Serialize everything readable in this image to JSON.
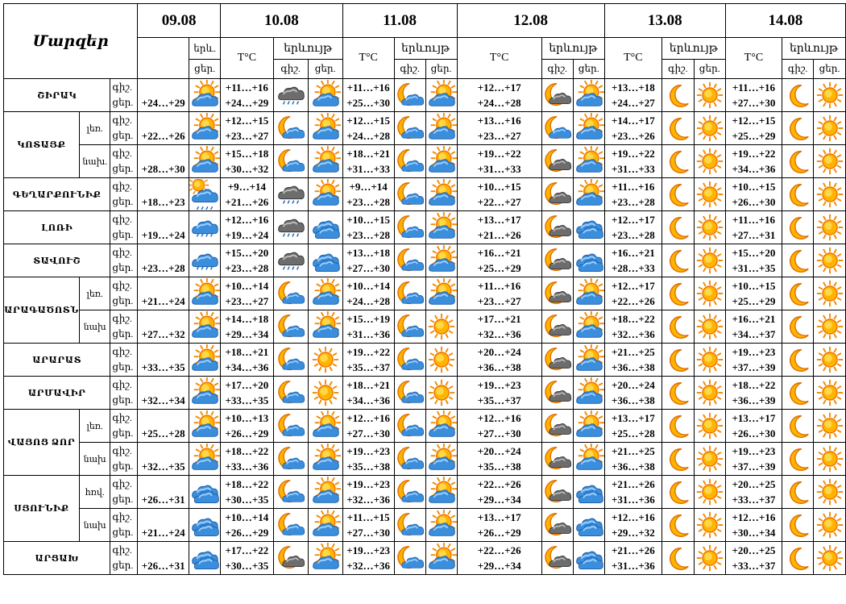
{
  "title": "Մարզեր",
  "dates": [
    "09.08",
    "10.08",
    "11.08",
    "12.08",
    "13.08",
    "14.08"
  ],
  "labels": {
    "temp": "T°C",
    "phen": "երևույթ",
    "phen_short": "երև.",
    "night": "գիշ.",
    "day": "ցեր."
  },
  "rows": [
    {
      "region": "ՇԻՐԱԿ",
      "t1": "+24…+29",
      "i1": "cloud-sun",
      "days": [
        {
          "n": "+11…+16",
          "d": "+24…+29",
          "in": "rain-cloud",
          "id": "cloud-sun"
        },
        {
          "n": "+11…+16",
          "d": "+25…+30",
          "in": "moon-cloud",
          "id": "cloud-sun"
        },
        {
          "n": "+12…+17",
          "d": "+24…+28",
          "in": "moon-dark-cloud",
          "id": "cloud-sun"
        },
        {
          "n": "+13…+18",
          "d": "+24…+27",
          "in": "moon",
          "id": "sun"
        },
        {
          "n": "+11…+16",
          "d": "+27…+30",
          "in": "moon",
          "id": "sun"
        }
      ]
    },
    {
      "region": "ԿՈՏԱՅՔ",
      "sub": "լեռ.",
      "t1": "+22…+26",
      "i1": "cloud-sun",
      "days": [
        {
          "n": "+12…+15",
          "d": "+23…+27",
          "in": "moon-cloud",
          "id": "cloud-sun"
        },
        {
          "n": "+12…+15",
          "d": "+24…+28",
          "in": "moon-cloud",
          "id": "cloud-sun"
        },
        {
          "n": "+13…+16",
          "d": "+23…+27",
          "in": "moon-cloud",
          "id": "cloud-sun"
        },
        {
          "n": "+14…+17",
          "d": "+23…+26",
          "in": "moon",
          "id": "sun"
        },
        {
          "n": "+12…+15",
          "d": "+25…+29",
          "in": "moon",
          "id": "sun"
        }
      ]
    },
    {
      "sub": "նախ.",
      "t1": "+28…+30",
      "i1": "cloud-sun",
      "days": [
        {
          "n": "+15…+18",
          "d": "+30…+32",
          "in": "moon-cloud",
          "id": "cloud-sun"
        },
        {
          "n": "+18…+21",
          "d": "+31…+33",
          "in": "moon-cloud",
          "id": "cloud-sun"
        },
        {
          "n": "+19…+22",
          "d": "+31…+33",
          "in": "moon-dark-cloud",
          "id": "cloud-sun"
        },
        {
          "n": "+19…+22",
          "d": "+31…+33",
          "in": "moon",
          "id": "sun"
        },
        {
          "n": "+19…+22",
          "d": "+34…+36",
          "in": "moon",
          "id": "sun"
        }
      ]
    },
    {
      "region": "ԳԵՂԱՐՔՈՒՆԻՔ",
      "t1": "+18…+23",
      "i1": "sun-rain",
      "days": [
        {
          "n": "+9…+14",
          "d": "+21…+26",
          "in": "rain-cloud",
          "id": "cloud-sun"
        },
        {
          "n": "+9…+14",
          "d": "+23…+28",
          "in": "moon-cloud",
          "id": "cloud-sun"
        },
        {
          "n": "+10…+15",
          "d": "+22…+27",
          "in": "moon-dark-cloud",
          "id": "cloud-sun"
        },
        {
          "n": "+11…+16",
          "d": "+23…+28",
          "in": "moon",
          "id": "sun"
        },
        {
          "n": "+10…+15",
          "d": "+26…+30",
          "in": "moon",
          "id": "sun"
        }
      ]
    },
    {
      "region": "ԼՈՌԻ",
      "t1": "+19…+24",
      "i1": "rain",
      "days": [
        {
          "n": "+12…+16",
          "d": "+19…+24",
          "in": "rain-cloud",
          "id": "cloud"
        },
        {
          "n": "+10…+15",
          "d": "+23…+28",
          "in": "moon-cloud",
          "id": "cloud-sun"
        },
        {
          "n": "+13…+17",
          "d": "+21…+26",
          "in": "moon-dark-cloud",
          "id": "cloud"
        },
        {
          "n": "+12…+17",
          "d": "+23…+28",
          "in": "moon",
          "id": "sun"
        },
        {
          "n": "+11…+16",
          "d": "+27…+31",
          "in": "moon",
          "id": "sun"
        }
      ]
    },
    {
      "region": "ՏԱՎՈՒՇ",
      "t1": "+23…+28",
      "i1": "rain",
      "days": [
        {
          "n": "+15…+20",
          "d": "+23…+28",
          "in": "rain-cloud",
          "id": "cloud"
        },
        {
          "n": "+13…+18",
          "d": "+27…+30",
          "in": "moon-cloud",
          "id": "cloud-sun"
        },
        {
          "n": "+16…+21",
          "d": "+25…+29",
          "in": "moon-dark-cloud",
          "id": "cloud"
        },
        {
          "n": "+16…+21",
          "d": "+28…+33",
          "in": "moon",
          "id": "sun"
        },
        {
          "n": "+15…+20",
          "d": "+31…+35",
          "in": "moon",
          "id": "sun"
        }
      ]
    },
    {
      "region": "ԱՐԱԳԱԾՈՏՆ",
      "sub": "լեռ.",
      "t1": "+21…+24",
      "i1": "cloud-sun",
      "days": [
        {
          "n": "+10…+14",
          "d": "+23…+27",
          "in": "moon-cloud",
          "id": "cloud-sun"
        },
        {
          "n": "+10…+14",
          "d": "+24…+28",
          "in": "moon-cloud",
          "id": "cloud-sun"
        },
        {
          "n": "+11…+16",
          "d": "+23…+27",
          "in": "moon-dark-cloud",
          "id": "cloud-sun"
        },
        {
          "n": "+12…+17",
          "d": "+22…+26",
          "in": "moon",
          "id": "sun"
        },
        {
          "n": "+10…+15",
          "d": "+25…+29",
          "in": "moon",
          "id": "sun"
        }
      ]
    },
    {
      "sub": "նախ",
      "t1": "+27…+32",
      "i1": "cloud-sun",
      "days": [
        {
          "n": "+14…+18",
          "d": "+29…+34",
          "in": "moon-cloud",
          "id": "cloud-sun"
        },
        {
          "n": "+15…+19",
          "d": "+31…+36",
          "in": "moon-cloud",
          "id": "sun"
        },
        {
          "n": "+17…+21",
          "d": "+32…+36",
          "in": "moon-dark-cloud",
          "id": "cloud-sun"
        },
        {
          "n": "+18…+22",
          "d": "+32…+36",
          "in": "moon",
          "id": "sun"
        },
        {
          "n": "+16…+21",
          "d": "+34…+37",
          "in": "moon",
          "id": "sun"
        }
      ]
    },
    {
      "region": "ԱՐԱՐԱՏ",
      "t1": "+33…+35",
      "i1": "cloud-sun",
      "days": [
        {
          "n": "+18…+21",
          "d": "+34…+36",
          "in": "moon-cloud",
          "id": "sun"
        },
        {
          "n": "+19…+22",
          "d": "+35…+37",
          "in": "moon-cloud",
          "id": "sun"
        },
        {
          "n": "+20…+24",
          "d": "+36…+38",
          "in": "moon-dark-cloud",
          "id": "cloud-sun"
        },
        {
          "n": "+21…+25",
          "d": "+36…+38",
          "in": "moon",
          "id": "sun"
        },
        {
          "n": "+19…+23",
          "d": "+37…+39",
          "in": "moon",
          "id": "sun"
        }
      ]
    },
    {
      "region": "ԱՐՄԱՎԻՐ",
      "t1": "+32…+34",
      "i1": "cloud-sun",
      "days": [
        {
          "n": "+17…+20",
          "d": "+33…+35",
          "in": "moon-cloud",
          "id": "sun"
        },
        {
          "n": "+18…+21",
          "d": "+34…+36",
          "in": "moon-cloud",
          "id": "sun"
        },
        {
          "n": "+19…+23",
          "d": "+35…+37",
          "in": "moon-dark-cloud",
          "id": "cloud-sun"
        },
        {
          "n": "+20…+24",
          "d": "+36…+38",
          "in": "moon",
          "id": "sun"
        },
        {
          "n": "+18…+22",
          "d": "+36…+39",
          "in": "moon",
          "id": "sun"
        }
      ]
    },
    {
      "region": "ՎԱՅՈՑ ՁՈՐ",
      "sub": "լեռ.",
      "t1": "+25…+28",
      "i1": "cloud-sun",
      "days": [
        {
          "n": "+10…+13",
          "d": "+26…+29",
          "in": "moon-cloud",
          "id": "cloud-sun"
        },
        {
          "n": "+12…+16",
          "d": "+27…+30",
          "in": "moon-cloud",
          "id": "cloud-sun"
        },
        {
          "n": "+12…+16",
          "d": "+27…+30",
          "in": "moon-dark-cloud",
          "id": "cloud-sun"
        },
        {
          "n": "+13…+17",
          "d": "+25…+28",
          "in": "moon",
          "id": "sun"
        },
        {
          "n": "+13…+17",
          "d": "+26…+30",
          "in": "moon",
          "id": "sun"
        }
      ]
    },
    {
      "sub": "նախ",
      "t1": "+32…+35",
      "i1": "cloud-sun",
      "days": [
        {
          "n": "+18…+22",
          "d": "+33…+36",
          "in": "moon-cloud",
          "id": "cloud-sun"
        },
        {
          "n": "+19…+23",
          "d": "+35…+38",
          "in": "moon-cloud",
          "id": "cloud-sun"
        },
        {
          "n": "+20…+24",
          "d": "+35…+38",
          "in": "moon-dark-cloud",
          "id": "cloud-sun"
        },
        {
          "n": "+21…+25",
          "d": "+36…+38",
          "in": "moon",
          "id": "sun"
        },
        {
          "n": "+19…+23",
          "d": "+37…+39",
          "in": "moon",
          "id": "sun"
        }
      ]
    },
    {
      "region": "ՍՅՈՒՆԻՔ",
      "sub": "հռվ.",
      "t1": "+26…+31",
      "i1": "cloud",
      "days": [
        {
          "n": "+18…+22",
          "d": "+30…+35",
          "in": "moon-cloud",
          "id": "cloud-sun"
        },
        {
          "n": "+19…+23",
          "d": "+32…+36",
          "in": "moon-cloud",
          "id": "cloud-sun"
        },
        {
          "n": "+22…+26",
          "d": "+29…+34",
          "in": "moon-dark-cloud",
          "id": "cloud"
        },
        {
          "n": "+21…+26",
          "d": "+31…+36",
          "in": "moon",
          "id": "sun"
        },
        {
          "n": "+20…+25",
          "d": "+33…+37",
          "in": "moon",
          "id": "sun"
        }
      ]
    },
    {
      "sub": "նախ",
      "t1": "+21…+24",
      "i1": "cloud",
      "days": [
        {
          "n": "+10…+14",
          "d": "+26…+29",
          "in": "moon-cloud",
          "id": "cloud-sun"
        },
        {
          "n": "+11…+15",
          "d": "+27…+30",
          "in": "moon-cloud",
          "id": "cloud-sun"
        },
        {
          "n": "+13…+17",
          "d": "+26…+29",
          "in": "moon-dark-cloud",
          "id": "cloud"
        },
        {
          "n": "+12…+16",
          "d": "+29…+32",
          "in": "moon",
          "id": "sun"
        },
        {
          "n": "+12…+16",
          "d": "+30…+34",
          "in": "moon",
          "id": "sun"
        }
      ]
    },
    {
      "region": "ԱՐՑԱԽ",
      "t1": "+26…+31",
      "i1": "cloud",
      "days": [
        {
          "n": "+17…+22",
          "d": "+30…+35",
          "in": "moon-dark-cloud",
          "id": "cloud-sun"
        },
        {
          "n": "+19…+23",
          "d": "+32…+36",
          "in": "moon-cloud",
          "id": "cloud-sun"
        },
        {
          "n": "+22…+26",
          "d": "+29…+34",
          "in": "moon-dark-cloud",
          "id": "cloud"
        },
        {
          "n": "+21…+26",
          "d": "+31…+36",
          "in": "moon",
          "id": "sun"
        },
        {
          "n": "+20…+25",
          "d": "+33…+37",
          "in": "moon",
          "id": "sun"
        }
      ]
    }
  ]
}
